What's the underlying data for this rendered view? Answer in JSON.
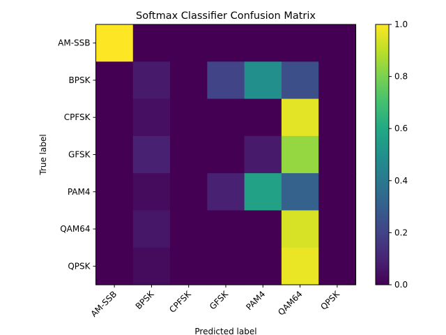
{
  "chart_data": {
    "type": "heatmap",
    "title": "Softmax Classifier Confusion Matrix",
    "xlabel": "Predicted label",
    "ylabel": "True label",
    "x_categories": [
      "AM-SSB",
      "BPSK",
      "CPFSK",
      "GFSK",
      "PAM4",
      "QAM64",
      "QPSK"
    ],
    "y_categories": [
      "AM-SSB",
      "BPSK",
      "CPFSK",
      "GFSK",
      "PAM4",
      "QAM64",
      "QPSK"
    ],
    "values": [
      [
        1.0,
        0.0,
        0.0,
        0.0,
        0.0,
        0.0,
        0.0
      ],
      [
        0.0,
        0.07,
        0.0,
        0.2,
        0.49,
        0.24,
        0.0
      ],
      [
        0.0,
        0.04,
        0.0,
        0.0,
        0.0,
        0.96,
        0.0
      ],
      [
        0.0,
        0.09,
        0.0,
        0.0,
        0.07,
        0.84,
        0.0
      ],
      [
        0.0,
        0.03,
        0.0,
        0.09,
        0.57,
        0.31,
        0.0
      ],
      [
        0.0,
        0.06,
        0.0,
        0.0,
        0.0,
        0.94,
        0.0
      ],
      [
        0.0,
        0.03,
        0.0,
        0.0,
        0.0,
        0.97,
        0.0
      ]
    ],
    "colormap": "viridis",
    "colorbar": {
      "range": [
        0.0,
        1.0
      ],
      "ticks": [
        "0.0",
        "0.2",
        "0.4",
        "0.6",
        "0.8",
        "1.0"
      ]
    }
  }
}
